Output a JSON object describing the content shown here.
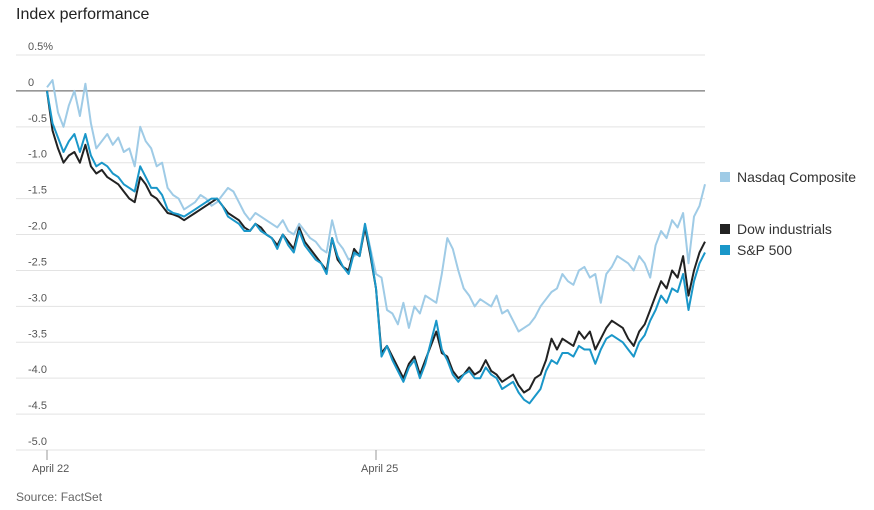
{
  "title": "Index performance",
  "source": "Source: FactSet",
  "chart_data": {
    "type": "line",
    "title": "Index performance",
    "xlabel": "",
    "ylabel": "",
    "ylim": [
      -5.0,
      0.5
    ],
    "y_ticks": [
      "0.5%",
      "0",
      "-0.5",
      "-1.0",
      "-1.5",
      "-2.0",
      "-2.5",
      "-3.0",
      "-3.5",
      "-4.0",
      "-4.5",
      "-5.0"
    ],
    "y_tick_values": [
      0.5,
      0,
      -0.5,
      -1.0,
      -1.5,
      -2.0,
      -2.5,
      -3.0,
      -3.5,
      -4.0,
      -4.5,
      -5.0
    ],
    "x_ticks": [
      {
        "label": "April 22",
        "x": 0
      },
      {
        "label": "April 25",
        "x": 60
      }
    ],
    "xlim": [
      0,
      120
    ],
    "grid": true,
    "legend_position": "right",
    "series": [
      {
        "name": "Nasdaq Composite",
        "color": "#9fcbe6",
        "x": [
          0,
          1,
          2,
          3,
          4,
          5,
          6,
          7,
          8,
          9,
          10,
          11,
          12,
          13,
          14,
          15,
          16,
          17,
          18,
          19,
          20,
          21,
          22,
          23,
          24,
          25,
          26,
          27,
          28,
          29,
          30,
          31,
          32,
          33,
          34,
          35,
          36,
          37,
          38,
          39,
          40,
          41,
          42,
          43,
          44,
          45,
          46,
          47,
          48,
          49,
          50,
          51,
          52,
          53,
          54,
          55,
          56,
          57,
          58,
          59,
          60,
          61,
          62,
          63,
          64,
          65,
          66,
          67,
          68,
          69,
          70,
          71,
          72,
          73,
          74,
          75,
          76,
          77,
          78,
          79,
          80,
          81,
          82,
          83,
          84,
          85,
          86,
          87,
          88,
          89,
          90,
          91,
          92,
          93,
          94,
          95,
          96,
          97,
          98,
          99,
          100,
          101,
          102,
          103,
          104,
          105,
          106,
          107,
          108,
          109,
          110,
          111,
          112,
          113,
          114,
          115,
          116,
          117,
          118,
          119,
          120
        ],
        "values": [
          0.05,
          0.15,
          -0.3,
          -0.5,
          -0.2,
          0.0,
          -0.35,
          0.1,
          -0.45,
          -0.8,
          -0.7,
          -0.6,
          -0.75,
          -0.65,
          -0.85,
          -0.8,
          -1.05,
          -0.5,
          -0.7,
          -0.8,
          -1.05,
          -1.0,
          -1.35,
          -1.45,
          -1.5,
          -1.65,
          -1.6,
          -1.55,
          -1.45,
          -1.5,
          -1.6,
          -1.55,
          -1.45,
          -1.35,
          -1.4,
          -1.55,
          -1.7,
          -1.8,
          -1.7,
          -1.75,
          -1.8,
          -1.85,
          -1.9,
          -1.8,
          -1.95,
          -2.0,
          -1.85,
          -1.95,
          -2.05,
          -2.1,
          -2.2,
          -2.25,
          -1.8,
          -2.1,
          -2.2,
          -2.35,
          -2.3,
          -2.25,
          -1.85,
          -2.2,
          -2.55,
          -2.6,
          -3.05,
          -3.1,
          -3.25,
          -2.95,
          -3.3,
          -3.0,
          -3.1,
          -2.85,
          -2.9,
          -2.95,
          -2.55,
          -2.05,
          -2.2,
          -2.5,
          -2.75,
          -2.85,
          -3.0,
          -2.9,
          -2.95,
          -3.0,
          -2.85,
          -3.1,
          -3.05,
          -3.2,
          -3.35,
          -3.3,
          -3.25,
          -3.15,
          -3.0,
          -2.9,
          -2.8,
          -2.75,
          -2.55,
          -2.65,
          -2.7,
          -2.5,
          -2.45,
          -2.6,
          -2.55,
          -2.95,
          -2.55,
          -2.45,
          -2.3,
          -2.35,
          -2.4,
          -2.5,
          -2.3,
          -2.4,
          -2.6,
          -2.15,
          -1.95,
          -2.05,
          -1.8,
          -1.9,
          -1.7,
          -2.4,
          -1.75,
          -1.6,
          -1.3
        ]
      },
      {
        "name": "Dow industrials",
        "color": "#222222",
        "x": [
          0,
          1,
          2,
          3,
          4,
          5,
          6,
          7,
          8,
          9,
          10,
          11,
          12,
          13,
          14,
          15,
          16,
          17,
          18,
          19,
          20,
          21,
          22,
          23,
          24,
          25,
          26,
          27,
          28,
          29,
          30,
          31,
          32,
          33,
          34,
          35,
          36,
          37,
          38,
          39,
          40,
          41,
          42,
          43,
          44,
          45,
          46,
          47,
          48,
          49,
          50,
          51,
          52,
          53,
          54,
          55,
          56,
          57,
          58,
          59,
          60,
          61,
          62,
          63,
          64,
          65,
          66,
          67,
          68,
          69,
          70,
          71,
          72,
          73,
          74,
          75,
          76,
          77,
          78,
          79,
          80,
          81,
          82,
          83,
          84,
          85,
          86,
          87,
          88,
          89,
          90,
          91,
          92,
          93,
          94,
          95,
          96,
          97,
          98,
          99,
          100,
          101,
          102,
          103,
          104,
          105,
          106,
          107,
          108,
          109,
          110,
          111,
          112,
          113,
          114,
          115,
          116,
          117,
          118,
          119,
          120
        ],
        "values": [
          0.0,
          -0.55,
          -0.8,
          -1.0,
          -0.9,
          -0.85,
          -1.0,
          -0.75,
          -1.05,
          -1.15,
          -1.1,
          -1.2,
          -1.25,
          -1.3,
          -1.4,
          -1.5,
          -1.55,
          -1.2,
          -1.3,
          -1.45,
          -1.5,
          -1.6,
          -1.7,
          -1.72,
          -1.75,
          -1.8,
          -1.75,
          -1.7,
          -1.65,
          -1.6,
          -1.55,
          -1.5,
          -1.6,
          -1.7,
          -1.75,
          -1.8,
          -1.9,
          -1.95,
          -1.85,
          -1.9,
          -2.0,
          -2.05,
          -2.15,
          -2.0,
          -2.1,
          -2.2,
          -1.9,
          -2.1,
          -2.2,
          -2.3,
          -2.4,
          -2.5,
          -2.05,
          -2.35,
          -2.45,
          -2.5,
          -2.2,
          -2.3,
          -1.9,
          -2.3,
          -2.75,
          -3.65,
          -3.55,
          -3.7,
          -3.85,
          -4.0,
          -3.8,
          -3.7,
          -3.95,
          -3.75,
          -3.55,
          -3.35,
          -3.65,
          -3.7,
          -3.9,
          -4.0,
          -3.95,
          -3.85,
          -3.95,
          -3.9,
          -3.75,
          -3.9,
          -3.95,
          -4.05,
          -4.0,
          -3.95,
          -4.1,
          -4.2,
          -4.15,
          -4.0,
          -3.95,
          -3.75,
          -3.45,
          -3.6,
          -3.45,
          -3.5,
          -3.55,
          -3.35,
          -3.45,
          -3.35,
          -3.6,
          -3.45,
          -3.3,
          -3.2,
          -3.25,
          -3.3,
          -3.45,
          -3.55,
          -3.35,
          -3.25,
          -3.05,
          -2.85,
          -2.65,
          -2.75,
          -2.5,
          -2.6,
          -2.3,
          -2.85,
          -2.5,
          -2.25,
          -2.1
        ]
      },
      {
        "name": "S&P 500",
        "color": "#1a97c9",
        "x": [
          0,
          1,
          2,
          3,
          4,
          5,
          6,
          7,
          8,
          9,
          10,
          11,
          12,
          13,
          14,
          15,
          16,
          17,
          18,
          19,
          20,
          21,
          22,
          23,
          24,
          25,
          26,
          27,
          28,
          29,
          30,
          31,
          32,
          33,
          34,
          35,
          36,
          37,
          38,
          39,
          40,
          41,
          42,
          43,
          44,
          45,
          46,
          47,
          48,
          49,
          50,
          51,
          52,
          53,
          54,
          55,
          56,
          57,
          58,
          59,
          60,
          61,
          62,
          63,
          64,
          65,
          66,
          67,
          68,
          69,
          70,
          71,
          72,
          73,
          74,
          75,
          76,
          77,
          78,
          79,
          80,
          81,
          82,
          83,
          84,
          85,
          86,
          87,
          88,
          89,
          90,
          91,
          92,
          93,
          94,
          95,
          96,
          97,
          98,
          99,
          100,
          101,
          102,
          103,
          104,
          105,
          106,
          107,
          108,
          109,
          110,
          111,
          112,
          113,
          114,
          115,
          116,
          117,
          118,
          119,
          120
        ],
        "values": [
          0.0,
          -0.45,
          -0.65,
          -0.85,
          -0.7,
          -0.6,
          -0.85,
          -0.6,
          -0.9,
          -1.05,
          -1.0,
          -1.05,
          -1.15,
          -1.2,
          -1.3,
          -1.35,
          -1.4,
          -1.05,
          -1.2,
          -1.35,
          -1.35,
          -1.45,
          -1.65,
          -1.7,
          -1.72,
          -1.75,
          -1.7,
          -1.65,
          -1.6,
          -1.55,
          -1.5,
          -1.5,
          -1.6,
          -1.75,
          -1.8,
          -1.85,
          -1.95,
          -1.95,
          -1.85,
          -1.95,
          -2.0,
          -2.05,
          -2.2,
          -2.0,
          -2.15,
          -2.25,
          -1.95,
          -2.15,
          -2.25,
          -2.35,
          -2.4,
          -2.55,
          -2.05,
          -2.3,
          -2.45,
          -2.55,
          -2.25,
          -2.3,
          -1.85,
          -2.25,
          -2.75,
          -3.7,
          -3.55,
          -3.75,
          -3.9,
          -4.05,
          -3.85,
          -3.75,
          -4.0,
          -3.8,
          -3.5,
          -3.2,
          -3.6,
          -3.75,
          -3.95,
          -4.05,
          -3.95,
          -3.9,
          -4.0,
          -4.0,
          -3.85,
          -3.95,
          -4.0,
          -4.15,
          -4.1,
          -4.05,
          -4.2,
          -4.3,
          -4.35,
          -4.25,
          -4.15,
          -3.9,
          -3.75,
          -3.8,
          -3.65,
          -3.65,
          -3.7,
          -3.55,
          -3.6,
          -3.6,
          -3.8,
          -3.6,
          -3.45,
          -3.4,
          -3.45,
          -3.5,
          -3.6,
          -3.7,
          -3.5,
          -3.4,
          -3.2,
          -3.05,
          -2.85,
          -2.95,
          -2.75,
          -2.8,
          -2.55,
          -3.05,
          -2.65,
          -2.4,
          -2.25
        ]
      }
    ]
  }
}
